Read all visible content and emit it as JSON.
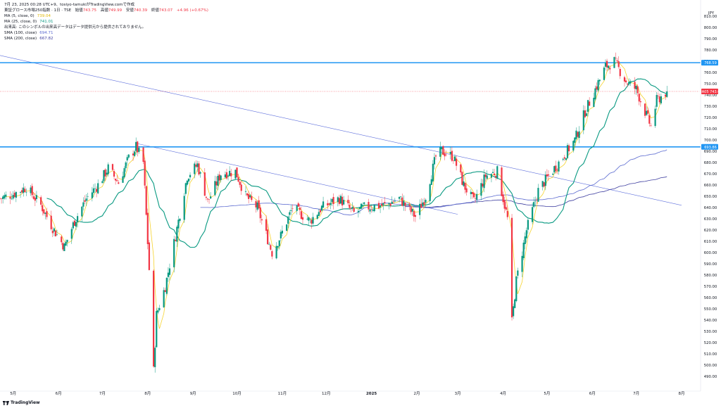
{
  "header": {
    "created_line": "7月 23, 2025 00:28 UTC+9、tosiyo-tamukiがTradingView.comで作成",
    "symbol_line": "東証グロース市場250指数 · 1日 · TSE",
    "ohlc": {
      "o_label": "始値",
      "o": "743.75",
      "h_label": "高値",
      "h": "749.99",
      "l_label": "安値",
      "l": "740.39",
      "c_label": "終値",
      "c": "743.07",
      "chg": "+4.96 (+0.67%)"
    },
    "indicators": [
      {
        "label": "MA (5, close, 0)",
        "value": "739.04",
        "color": "#f6d32d"
      },
      {
        "label": "MA (25, close, 0)",
        "value": "741.01",
        "color": "#089981"
      },
      {
        "label": "出来高: このシンボルの出来高データはデータ提供元から提供されておりません。",
        "value": "",
        "color": "#131722"
      },
      {
        "label": "SMA (100, close)",
        "value": "694.71",
        "color": "#5b6ad0"
      },
      {
        "label": "SMA (200, close)",
        "value": "667.82",
        "color": "#3f3fa0"
      }
    ]
  },
  "watermark": {
    "text": "TradingView",
    "icon": "tradingview-logo-icon"
  },
  "colors": {
    "up": "#089981",
    "down": "#f23645",
    "hline": "#2196f3",
    "trend": "#5e6fdc",
    "ma5": "#f6d32d",
    "ma25": "#089981",
    "sma100": "#5b6ad0",
    "sma200": "#3f3fa0"
  },
  "chart_data": {
    "type": "candlestick",
    "currency": "JPY",
    "ylim": [
      482,
      818
    ],
    "y_ticks": [
      490,
      500,
      510,
      520,
      530,
      540,
      550,
      560,
      570,
      580,
      590,
      600,
      610,
      620,
      630,
      640,
      650,
      660,
      670,
      680,
      690,
      700,
      710,
      720,
      730,
      740,
      750,
      760,
      770,
      780,
      790,
      800,
      810
    ],
    "x_ticks": [
      {
        "label": "5月",
        "date": "2024-05-01"
      },
      {
        "label": "6月",
        "date": "2024-06-01"
      },
      {
        "label": "7月",
        "date": "2024-07-01"
      },
      {
        "label": "8月",
        "date": "2024-08-01"
      },
      {
        "label": "9月",
        "date": "2024-09-01"
      },
      {
        "label": "10月",
        "date": "2024-10-01"
      },
      {
        "label": "11月",
        "date": "2024-11-01"
      },
      {
        "label": "12月",
        "date": "2024-12-01"
      },
      {
        "label": "2025",
        "date": "2025-01-01"
      },
      {
        "label": "2月",
        "date": "2025-02-01"
      },
      {
        "label": "3月",
        "date": "2025-03-01"
      },
      {
        "label": "4月",
        "date": "2025-04-01"
      },
      {
        "label": "5月",
        "date": "2025-05-01"
      },
      {
        "label": "6月",
        "date": "2025-06-01"
      },
      {
        "label": "7月",
        "date": "2025-07-01"
      },
      {
        "label": "8月",
        "date": "2025-08-01"
      }
    ],
    "price_tags": [
      {
        "label": "768.59",
        "value": 768.59,
        "kind": "hline"
      },
      {
        "label": "MA05",
        "value": 743.07,
        "kind": "last",
        "prefix": "MA05",
        "text": "743.07"
      },
      {
        "label": "693.86",
        "value": 693.86,
        "kind": "hline"
      }
    ],
    "horizontal_lines": [
      768.59,
      693.86
    ],
    "trend_lines": [
      {
        "from": [
          "2024-04-22",
          775
        ],
        "to": [
          "2025-08-01",
          642
        ]
      },
      {
        "from": [
          "2024-07-24",
          697
        ],
        "to": [
          "2025-03-01",
          634
        ]
      }
    ],
    "sparse_path": [
      [
        "2024-04-22",
        648
      ],
      [
        "2024-05-01",
        652
      ],
      [
        "2024-05-10",
        658
      ],
      [
        "2024-05-20",
        642
      ],
      [
        "2024-05-28",
        622
      ],
      [
        "2024-06-05",
        605
      ],
      [
        "2024-06-12",
        628
      ],
      [
        "2024-06-20",
        648
      ],
      [
        "2024-06-28",
        660
      ],
      [
        "2024-07-05",
        675
      ],
      [
        "2024-07-12",
        662
      ],
      [
        "2024-07-19",
        684
      ],
      [
        "2024-07-24",
        694
      ],
      [
        "2024-07-29",
        680
      ],
      [
        "2024-08-02",
        585
      ],
      [
        "2024-08-05",
        495
      ],
      [
        "2024-08-07",
        545
      ],
      [
        "2024-08-13",
        570
      ],
      [
        "2024-08-20",
        615
      ],
      [
        "2024-08-28",
        668
      ],
      [
        "2024-09-04",
        678
      ],
      [
        "2024-09-11",
        645
      ],
      [
        "2024-09-20",
        670
      ],
      [
        "2024-09-30",
        672
      ],
      [
        "2024-10-07",
        650
      ],
      [
        "2024-10-15",
        640
      ],
      [
        "2024-10-25",
        600
      ],
      [
        "2024-10-31",
        615
      ],
      [
        "2024-11-08",
        640
      ],
      [
        "2024-11-20",
        628
      ],
      [
        "2024-11-28",
        640
      ],
      [
        "2024-12-10",
        648
      ],
      [
        "2024-12-20",
        635
      ],
      [
        "2024-12-27",
        640
      ],
      [
        "2025-01-10",
        642
      ],
      [
        "2025-01-20",
        648
      ],
      [
        "2025-01-31",
        632
      ],
      [
        "2025-02-07",
        650
      ],
      [
        "2025-02-14",
        685
      ],
      [
        "2025-02-18",
        690
      ],
      [
        "2025-02-26",
        685
      ],
      [
        "2025-03-05",
        660
      ],
      [
        "2025-03-12",
        645
      ],
      [
        "2025-03-20",
        668
      ],
      [
        "2025-03-28",
        672
      ],
      [
        "2025-04-04",
        630
      ],
      [
        "2025-04-07",
        538
      ],
      [
        "2025-04-10",
        575
      ],
      [
        "2025-04-17",
        620
      ],
      [
        "2025-04-25",
        655
      ],
      [
        "2025-05-02",
        668
      ],
      [
        "2025-05-12",
        685
      ],
      [
        "2025-05-20",
        700
      ],
      [
        "2025-05-27",
        725
      ],
      [
        "2025-06-03",
        745
      ],
      [
        "2025-06-10",
        765
      ],
      [
        "2025-06-16",
        770
      ],
      [
        "2025-06-24",
        752
      ],
      [
        "2025-07-01",
        745
      ],
      [
        "2025-07-07",
        725
      ],
      [
        "2025-07-11",
        712
      ],
      [
        "2025-07-15",
        735
      ],
      [
        "2025-07-22",
        743.07
      ]
    ]
  }
}
